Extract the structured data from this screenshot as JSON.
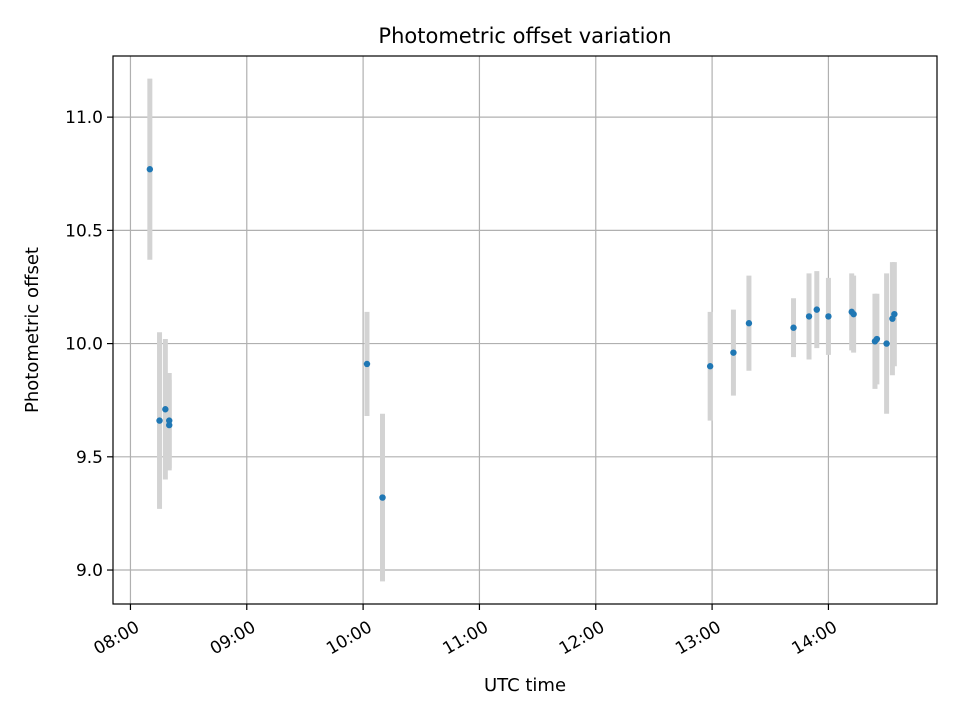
{
  "chart_data": {
    "type": "scatter",
    "title": "Photometric offset variation",
    "xlabel": "UTC time",
    "ylabel": "Photometric offset",
    "x_ticks": [
      "08:00",
      "09:00",
      "10:00",
      "11:00",
      "12:00",
      "13:00",
      "14:00"
    ],
    "y_ticks": [
      "9.0",
      "9.5",
      "10.0",
      "10.5",
      "11.0"
    ],
    "xlim": [
      "07:51",
      "14:56"
    ],
    "ylim": [
      8.85,
      11.27
    ],
    "grid": true,
    "series": [
      {
        "color": "#1f77b4",
        "errorbar_color": "#d3d3d3",
        "points": [
          {
            "x": "08:10",
            "y": 10.77,
            "yerr": 0.4
          },
          {
            "x": "08:15",
            "y": 9.66,
            "yerr": 0.39
          },
          {
            "x": "08:18",
            "y": 9.71,
            "yerr": 0.31
          },
          {
            "x": "08:20",
            "y": 9.64,
            "yerr": 0.2
          },
          {
            "x": "08:20",
            "y": 9.66,
            "yerr": 0.21
          },
          {
            "x": "10:02",
            "y": 9.91,
            "yerr": 0.23
          },
          {
            "x": "10:10",
            "y": 9.32,
            "yerr": 0.37
          },
          {
            "x": "12:59",
            "y": 9.9,
            "yerr": 0.24
          },
          {
            "x": "13:11",
            "y": 9.96,
            "yerr": 0.19
          },
          {
            "x": "13:19",
            "y": 10.09,
            "yerr": 0.21
          },
          {
            "x": "13:42",
            "y": 10.07,
            "yerr": 0.13
          },
          {
            "x": "13:50",
            "y": 10.12,
            "yerr": 0.19
          },
          {
            "x": "13:54",
            "y": 10.15,
            "yerr": 0.17
          },
          {
            "x": "14:00",
            "y": 10.12,
            "yerr": 0.17
          },
          {
            "x": "14:12",
            "y": 10.14,
            "yerr": 0.17
          },
          {
            "x": "14:13",
            "y": 10.13,
            "yerr": 0.17
          },
          {
            "x": "14:24",
            "y": 10.01,
            "yerr": 0.21
          },
          {
            "x": "14:25",
            "y": 10.02,
            "yerr": 0.2
          },
          {
            "x": "14:30",
            "y": 10.0,
            "yerr": 0.31
          },
          {
            "x": "14:33",
            "y": 10.11,
            "yerr": 0.25
          },
          {
            "x": "14:34",
            "y": 10.13,
            "yerr": 0.23
          }
        ]
      }
    ]
  }
}
